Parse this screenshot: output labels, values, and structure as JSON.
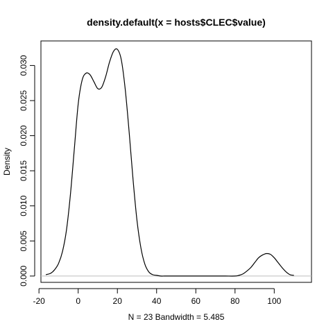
{
  "chart_data": {
    "type": "line",
    "title": "density.default(x = hosts$CLEC$value)",
    "xlabel": "N = 23   Bandwidth = 5.485",
    "ylabel": "Density",
    "xlim": [
      -19,
      119
    ],
    "ylim": [
      -0.0009,
      0.0335
    ],
    "x_ticks": [
      -20,
      0,
      20,
      40,
      60,
      80,
      100
    ],
    "x_tick_labels": [
      "-20",
      "0",
      "20",
      "40",
      "60",
      "80",
      "100"
    ],
    "y_ticks": [
      0,
      0.005,
      0.01,
      0.015,
      0.02,
      0.025,
      0.03
    ],
    "y_tick_labels": [
      "0.000",
      "0.005",
      "0.010",
      "0.015",
      "0.020",
      "0.025",
      "0.030"
    ],
    "grid": false,
    "legend": "none",
    "baseline": 0,
    "colors": {
      "line": "#000000",
      "baseline": "#bebebe",
      "axis": "#000000"
    },
    "series": [
      {
        "x": [
          -16.5,
          -14,
          -12,
          -10,
          -8,
          -6,
          -4,
          -2,
          0,
          2,
          4,
          6,
          8,
          10,
          12,
          14,
          16,
          18,
          20,
          22,
          24,
          26,
          28,
          30,
          32,
          34,
          36,
          38,
          40,
          42,
          44,
          46,
          48,
          50,
          55,
          60,
          65,
          70,
          75,
          80,
          82,
          84,
          86,
          88,
          90,
          92,
          94,
          96,
          98,
          100,
          102,
          104,
          106,
          108,
          110
        ],
        "y": [
          0.0002,
          0.0004,
          0.0009,
          0.0018,
          0.0035,
          0.0065,
          0.0115,
          0.018,
          0.0245,
          0.0279,
          0.0289,
          0.0287,
          0.0277,
          0.0267,
          0.0269,
          0.0284,
          0.0305,
          0.032,
          0.0323,
          0.0308,
          0.0266,
          0.0205,
          0.0137,
          0.0079,
          0.004,
          0.0017,
          0.0006,
          0.0002,
          0.0001,
          0.0,
          0.0,
          0.0,
          0.0,
          0.0,
          0.0,
          0.0,
          0.0,
          0.0,
          0.0,
          0.0,
          0.0001,
          0.0003,
          0.0007,
          0.0012,
          0.0019,
          0.0026,
          0.003,
          0.0032,
          0.0031,
          0.0026,
          0.0019,
          0.0012,
          0.0006,
          0.0002,
          0.0001
        ]
      }
    ]
  }
}
